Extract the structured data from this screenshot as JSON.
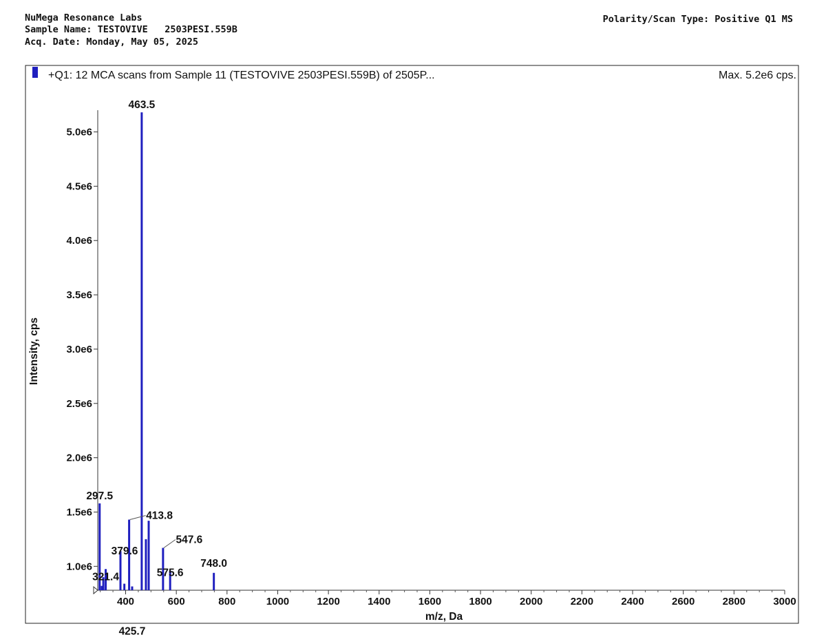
{
  "header": {
    "lab": "NuMega Resonance Labs",
    "sample_name": "Sample Name: TESTOVIVE   2503PESI.559B",
    "acq_date": "Acq. Date: Monday, May 05, 2025",
    "polarity": "Polarity/Scan Type: Positive Q1 MS"
  },
  "colors": {
    "series": "#1f1fbf",
    "text": "#111111"
  },
  "chart_data": {
    "type": "bar",
    "title": "+Q1: 12 MCA scans from Sample 11 (TESTOVIVE   2503PESI.559B) of 2505P...",
    "max_label": "Max. 5.2e6 cps.",
    "xlabel": "m/z, Da",
    "ylabel": "Intensity, cps",
    "xlim": [
      290,
      3000
    ],
    "ylim": [
      780000,
      5200000
    ],
    "x_ticks": [
      400,
      600,
      800,
      1000,
      1200,
      1400,
      1600,
      1800,
      2000,
      2200,
      2400,
      2600,
      2800,
      3000
    ],
    "y_ticks": [
      1000000,
      1500000,
      2000000,
      2500000,
      3000000,
      3500000,
      4000000,
      4500000,
      5000000
    ],
    "y_tick_labels": [
      "1.0e6",
      "1.5e6",
      "2.0e6",
      "2.5e6",
      "3.0e6",
      "3.5e6",
      "4.0e6",
      "4.5e6",
      "5.0e6"
    ],
    "peaks": [
      {
        "mz": 297.5,
        "intensity": 1580000,
        "label": "297.5"
      },
      {
        "mz": 306.0,
        "intensity": 820000
      },
      {
        "mz": 312.0,
        "intensity": 900000
      },
      {
        "mz": 321.4,
        "intensity": 975000,
        "label": "321.4"
      },
      {
        "mz": 379.6,
        "intensity": 1140000,
        "label": "379.6"
      },
      {
        "mz": 395.0,
        "intensity": 840000
      },
      {
        "mz": 413.8,
        "intensity": 1430000,
        "label": "413.8"
      },
      {
        "mz": 425.7,
        "intensity": 815000,
        "label": "425.7"
      },
      {
        "mz": 463.5,
        "intensity": 5180000,
        "label": "463.5"
      },
      {
        "mz": 480.0,
        "intensity": 1250000
      },
      {
        "mz": 491.0,
        "intensity": 1420000
      },
      {
        "mz": 547.6,
        "intensity": 1170000,
        "label": "547.6"
      },
      {
        "mz": 575.6,
        "intensity": 960000,
        "label": "575.6"
      },
      {
        "mz": 748.0,
        "intensity": 940000,
        "label": "748.0"
      }
    ]
  }
}
